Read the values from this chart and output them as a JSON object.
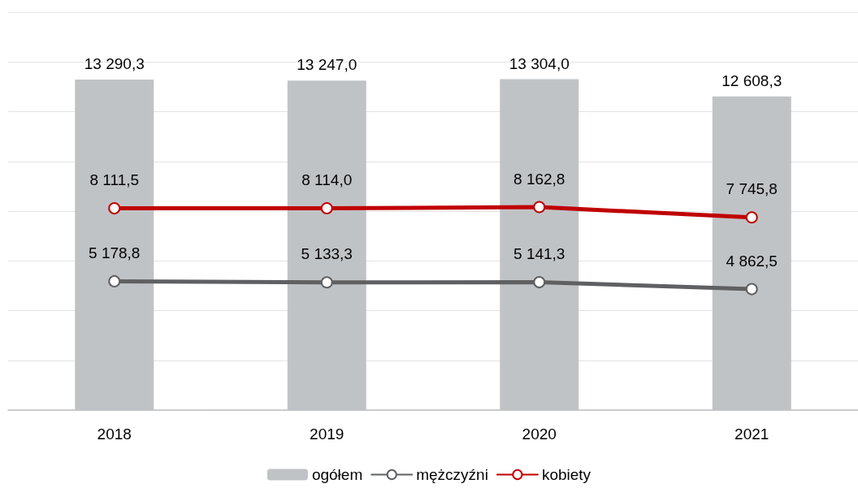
{
  "chart_data": {
    "type": "bar",
    "categories": [
      "2018",
      "2019",
      "2020",
      "2021"
    ],
    "series": [
      {
        "name": "ogółem",
        "color": "#c0c3c6",
        "values": [
          13290.3,
          13247.0,
          13304.0,
          12608.3
        ],
        "value_labels": [
          "13 290,3",
          "13 247,0",
          "13 304,0",
          "12 608,3"
        ]
      },
      {
        "name": "mężczyźni",
        "type": "line",
        "color": "#5f6062",
        "values": [
          5178.8,
          5133.3,
          5141.3,
          4862.5
        ],
        "value_labels": [
          "5 178,8",
          "5 133,3",
          "5 141,3",
          "4 862,5"
        ]
      },
      {
        "name": "kobiety",
        "type": "line",
        "color": "#c00000",
        "values": [
          8111.5,
          8114.0,
          8162.8,
          7745.8
        ],
        "value_labels": [
          "8 111,5",
          "8 114,0",
          "8 162,8",
          "7 745,8"
        ]
      }
    ],
    "ylim": [
      0,
      16000
    ],
    "yticks": [
      {
        "value": 0,
        "label": null
      },
      {
        "value": 2000,
        "label": null
      },
      {
        "value": 4000,
        "label": null
      },
      {
        "value": 6000,
        "label": null
      },
      {
        "value": 8000,
        "label": null
      },
      {
        "value": 10000,
        "label": null
      },
      {
        "value": 12000,
        "label": null
      },
      {
        "value": 14000,
        "label": null
      },
      {
        "value": 16000,
        "label": null
      }
    ],
    "tick_labels": "x",
    "grid": "y",
    "legend": "bottom",
    "marker": "circle",
    "line_style": "solid"
  }
}
